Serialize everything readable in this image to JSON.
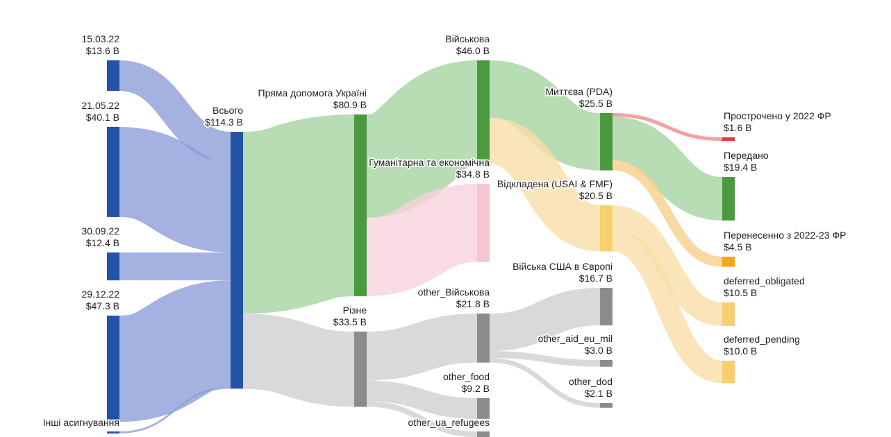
{
  "chart_data": {
    "type": "sankey",
    "nodes": [
      {
        "name": "15.03.22",
        "value": 13.6,
        "value_label": "$13.6 B",
        "color": "#2354a8"
      },
      {
        "name": "21.05.22",
        "value": 40.1,
        "value_label": "$40.1 B",
        "color": "#2354a8"
      },
      {
        "name": "30.09.22",
        "value": 12.4,
        "value_label": "$12.4 B",
        "color": "#2354a8"
      },
      {
        "name": "29.12.22",
        "value": 47.3,
        "value_label": "$47.3 B",
        "color": "#2354a8"
      },
      {
        "name": "Інші асигнування",
        "value": 0.9,
        "color": "#2354a8"
      },
      {
        "name": "Всього",
        "value": 114.3,
        "value_label": "$114.3 B",
        "color": "#2354a8"
      },
      {
        "name": "Пряма допомога Україні",
        "value": 80.9,
        "value_label": "$80.9 B",
        "color": "#4c9a40"
      },
      {
        "name": "Різне",
        "value": 33.5,
        "value_label": "$33.5 B",
        "color": "#8c8c8c"
      },
      {
        "name": "Військова",
        "value": 46.0,
        "value_label": "$46.0 B",
        "color": "#4c9a40"
      },
      {
        "name": "Гуманітарна та економічна",
        "value": 34.8,
        "value_label": "$34.8 B",
        "color": "#f5c6d0"
      },
      {
        "name": "Миттєва (PDA)",
        "value": 25.5,
        "value_label": "$25.5 B",
        "color": "#4c9a40"
      },
      {
        "name": "Відкладена (USAI & FMF)",
        "value": 20.5,
        "value_label": "$20.5 B",
        "color": "#f5cf70"
      },
      {
        "name": "Війська США в Європі",
        "value": 16.7,
        "value_label": "$16.7 B",
        "color": "#8c8c8c"
      },
      {
        "name": "other_Військова",
        "value": 21.8,
        "value_label": "$21.8 B",
        "color": "#8c8c8c"
      },
      {
        "name": "other_food",
        "value": 9.2,
        "value_label": "$9.2 B",
        "color": "#8c8c8c"
      },
      {
        "name": "other_ua_refugees",
        "value": 2.5,
        "color": "#8c8c8c"
      },
      {
        "name": "other_aid_eu_mil",
        "value": 3.0,
        "value_label": "$3.0 B",
        "color": "#8c8c8c"
      },
      {
        "name": "other_dod",
        "value": 2.1,
        "value_label": "$2.1 B",
        "color": "#8c8c8c"
      },
      {
        "name": "Прострочено у 2022 ФР",
        "value": 1.6,
        "value_label": "$1.6 B",
        "color": "#e8363a"
      },
      {
        "name": "Передано",
        "value": 19.4,
        "value_label": "$19.4 B",
        "color": "#4c9a40"
      },
      {
        "name": "Перенесенно з 2022-23 ФР",
        "value": 4.5,
        "value_label": "$4.5 B",
        "color": "#f5a623"
      },
      {
        "name": "deferred_obligated",
        "value": 10.5,
        "value_label": "$10.5 B",
        "color": "#f5cf70"
      },
      {
        "name": "deferred_pending",
        "value": 10.0,
        "value_label": "$10.0 B",
        "color": "#f5cf70"
      }
    ],
    "links": [
      {
        "source": 0,
        "target": 5,
        "value": 13.6,
        "color": "#8e9ed8"
      },
      {
        "source": 1,
        "target": 5,
        "value": 40.1,
        "color": "#8e9ed8"
      },
      {
        "source": 2,
        "target": 5,
        "value": 12.4,
        "color": "#8e9ed8"
      },
      {
        "source": 3,
        "target": 5,
        "value": 47.3,
        "color": "#8e9ed8"
      },
      {
        "source": 4,
        "target": 5,
        "value": 0.9,
        "color": "#8e9ed8"
      },
      {
        "source": 5,
        "target": 6,
        "value": 80.9,
        "color": "#a6d3a0"
      },
      {
        "source": 5,
        "target": 7,
        "value": 33.5,
        "color": "#cfd0d2"
      },
      {
        "source": 6,
        "target": 8,
        "value": 46.0,
        "color": "#a6d3a0"
      },
      {
        "source": 6,
        "target": 9,
        "value": 34.8,
        "color": "#f8d3dc"
      },
      {
        "source": 8,
        "target": 10,
        "value": 25.5,
        "color": "#a6d3a0"
      },
      {
        "source": 8,
        "target": 11,
        "value": 20.5,
        "color": "#f8dfa8"
      },
      {
        "source": 7,
        "target": 13,
        "value": 21.8,
        "color": "#cfd0d2"
      },
      {
        "source": 7,
        "target": 14,
        "value": 9.2,
        "color": "#cfd0d2"
      },
      {
        "source": 7,
        "target": 15,
        "value": 2.5,
        "color": "#cfd0d2"
      },
      {
        "source": 13,
        "target": 12,
        "value": 16.7,
        "color": "#cfd0d2"
      },
      {
        "source": 13,
        "target": 16,
        "value": 3.0,
        "color": "#cfd0d2"
      },
      {
        "source": 13,
        "target": 17,
        "value": 2.1,
        "color": "#cfd0d2"
      },
      {
        "source": 10,
        "target": 18,
        "value": 1.6,
        "color": "#f08a8a"
      },
      {
        "source": 10,
        "target": 19,
        "value": 19.4,
        "color": "#a6d3a0"
      },
      {
        "source": 10,
        "target": 20,
        "value": 4.5,
        "color": "#f8d08a"
      },
      {
        "source": 11,
        "target": 21,
        "value": 10.5,
        "color": "#f8dfa8"
      },
      {
        "source": 11,
        "target": 22,
        "value": 10.0,
        "color": "#f8dfa8"
      }
    ]
  }
}
